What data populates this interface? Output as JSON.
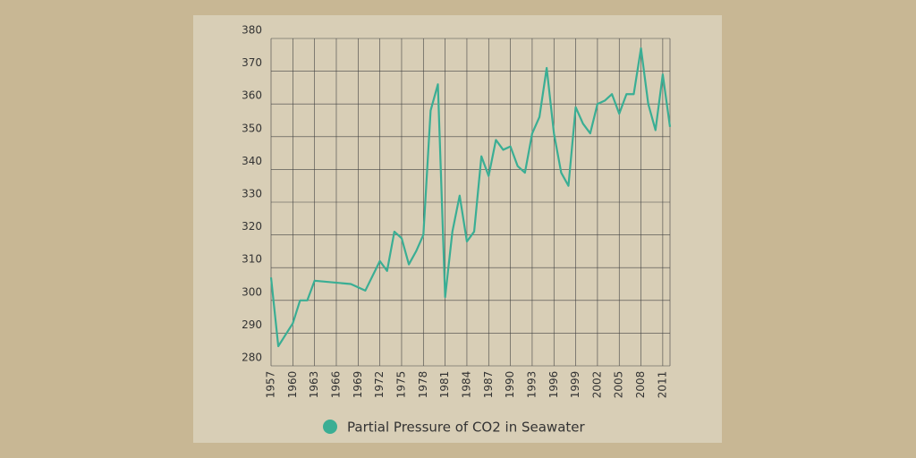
{
  "chart_data": {
    "type": "line",
    "x": [
      1957,
      1958,
      1960,
      1961,
      1962,
      1963,
      1968,
      1970,
      1972,
      1973,
      1974,
      1975,
      1976,
      1977,
      1978,
      1979,
      1980,
      1981,
      1982,
      1983,
      1984,
      1985,
      1986,
      1987,
      1988,
      1989,
      1990,
      1991,
      1992,
      1993,
      1994,
      1995,
      1996,
      1997,
      1998,
      1999,
      2000,
      2001,
      2002,
      2003,
      2004,
      2005,
      2006,
      2007,
      2008,
      2009,
      2010,
      2011,
      2012
    ],
    "series": [
      {
        "name": "Partial Pressure of CO2 in Seawater",
        "color": "#3aae94",
        "values": [
          307,
          286,
          293,
          300,
          300,
          306,
          305,
          303,
          312,
          309,
          321,
          319,
          311,
          315,
          320,
          358,
          366,
          301,
          321,
          332,
          318,
          321,
          344,
          338,
          349,
          346,
          347,
          341,
          339,
          351,
          356,
          371,
          351,
          339,
          335,
          359,
          354,
          351,
          360,
          361,
          363,
          357,
          363,
          363,
          377,
          360,
          352,
          369,
          353
        ]
      }
    ],
    "xlim": [
      1957,
      2012
    ],
    "xticks": [
      1957,
      1960,
      1963,
      1966,
      1969,
      1972,
      1975,
      1978,
      1981,
      1984,
      1987,
      1990,
      1993,
      1996,
      1999,
      2002,
      2005,
      2008,
      2011
    ],
    "ylim": [
      280,
      380
    ],
    "yticks": [
      280,
      290,
      300,
      310,
      320,
      330,
      340,
      350,
      360,
      370,
      380
    ],
    "grid": true,
    "legend": "bottom"
  }
}
